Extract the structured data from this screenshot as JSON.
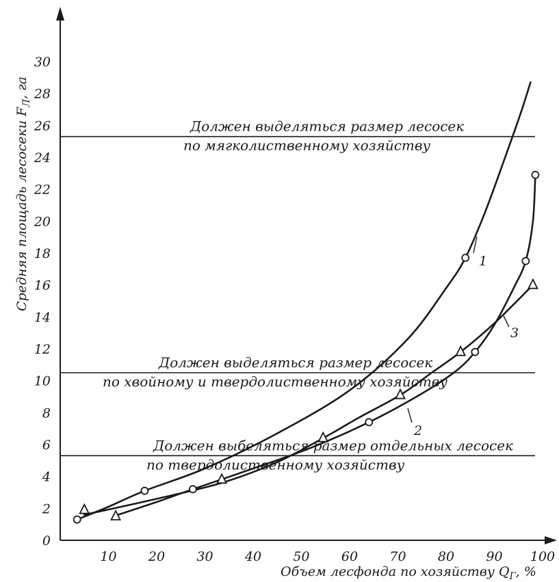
{
  "chart_data": {
    "type": "line",
    "title": "",
    "xlabel": "Объем лесфонда по хозяйству Q",
    "xlabel_sub": "Г",
    "xlabel_unit": ", %",
    "ylabel": "Средняя площадь лесосеки F",
    "ylabel_sub": "Л",
    "ylabel_unit": ", га",
    "xlim": [
      0,
      100
    ],
    "ylim": [
      0,
      30
    ],
    "x_ticks": [
      10,
      20,
      30,
      40,
      50,
      60,
      70,
      80,
      90,
      100
    ],
    "y_ticks": [
      0,
      2,
      4,
      6,
      8,
      10,
      12,
      14,
      16,
      18,
      20,
      22,
      24,
      26,
      28,
      30
    ],
    "grid": false,
    "reference_lines": [
      {
        "y": 25.3,
        "label_1": "Должен выделяться размер лесосек",
        "label_2": "по мягколиственному хозяйству"
      },
      {
        "y": 10.5,
        "label_1": "Должен выделяться размер лесосек",
        "label_2": "по хвойному и твердолиственному хозяйству"
      },
      {
        "y": 5.3,
        "label_1": "Должен выбеляться размер отдельных лесосек",
        "label_2": "по твердолиственному хозяйству"
      }
    ],
    "series": [
      {
        "name": "1",
        "marker": "circle",
        "points": [
          [
            3.5,
            1.3
          ],
          [
            17.5,
            3.1
          ],
          [
            84,
            17.7
          ]
        ],
        "curve": [
          [
            3.5,
            1.3
          ],
          [
            10,
            2.1
          ],
          [
            17.5,
            3.1
          ],
          [
            30,
            4.5
          ],
          [
            45,
            6.7
          ],
          [
            60,
            9.4
          ],
          [
            72,
            12.6
          ],
          [
            80,
            15.8
          ],
          [
            84,
            17.7
          ],
          [
            88,
            20.5
          ],
          [
            92,
            23.8
          ],
          [
            95.5,
            26.8
          ],
          [
            97.5,
            28.7
          ]
        ]
      },
      {
        "name": "2",
        "marker": "circle",
        "points": [
          [
            27.5,
            3.2
          ],
          [
            64,
            7.4
          ],
          [
            86,
            11.8
          ],
          [
            96.5,
            17.5
          ],
          [
            98.5,
            22.9
          ]
        ],
        "curve": [
          [
            11,
            1.5
          ],
          [
            20,
            2.4
          ],
          [
            27.5,
            3.2
          ],
          [
            40,
            4.5
          ],
          [
            52,
            5.8
          ],
          [
            64,
            7.4
          ],
          [
            75,
            9.2
          ],
          [
            82,
            10.6
          ],
          [
            86,
            11.8
          ],
          [
            90,
            13.5
          ],
          [
            94,
            15.8
          ],
          [
            96.5,
            17.5
          ],
          [
            98,
            20.0
          ],
          [
            98.5,
            22.9
          ]
        ]
      },
      {
        "name": "3",
        "marker": "triangle",
        "points": [
          [
            5,
            1.9
          ],
          [
            11.5,
            1.5
          ],
          [
            33.5,
            3.8
          ],
          [
            54.5,
            6.4
          ],
          [
            70.5,
            9.1
          ],
          [
            83,
            11.8
          ],
          [
            98,
            16.0
          ]
        ],
        "curve": [
          [
            5,
            1.6
          ],
          [
            20,
            2.6
          ],
          [
            33.5,
            3.6
          ],
          [
            45,
            4.9
          ],
          [
            54.5,
            6.4
          ],
          [
            62,
            7.7
          ],
          [
            70.5,
            9.1
          ],
          [
            77,
            10.5
          ],
          [
            83,
            11.8
          ],
          [
            90,
            13.6
          ],
          [
            98,
            16.0
          ]
        ]
      }
    ]
  }
}
